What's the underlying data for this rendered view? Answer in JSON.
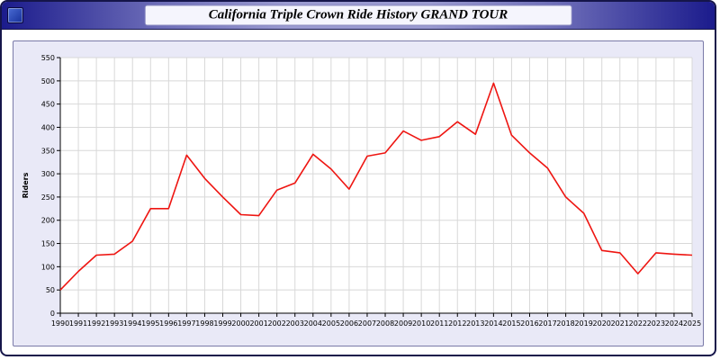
{
  "window": {
    "title": "California Triple Crown Ride History GRAND TOUR"
  },
  "colors": {
    "line": "#ee1511",
    "panel_bg": "#e9e9f7",
    "plot_bg": "#ffffff",
    "grid": "#d8d8d8",
    "axis": "#000000",
    "titlebar_edge": "#1b1b8c"
  },
  "chart_data": {
    "type": "line",
    "title": "California Triple Crown Ride History GRAND TOUR",
    "xlabel": "",
    "ylabel": "Riders",
    "ylim": [
      0,
      550
    ],
    "ytick_step": 50,
    "grid": true,
    "legend": "none",
    "x": [
      1990,
      1991,
      1992,
      1993,
      1994,
      1995,
      1996,
      1997,
      1998,
      1999,
      2000,
      2001,
      2002,
      2003,
      2004,
      2005,
      2006,
      2007,
      2008,
      2009,
      2010,
      2011,
      2012,
      2013,
      2014,
      2015,
      2016,
      2017,
      2018,
      2019,
      2020,
      2021,
      2022,
      2023,
      2024,
      2025
    ],
    "series": [
      {
        "name": "Riders",
        "color": "#ee1511",
        "values": [
          50,
          90,
          125,
          127,
          155,
          225,
          225,
          340,
          290,
          250,
          212,
          210,
          265,
          280,
          342,
          310,
          267,
          338,
          345,
          392,
          372,
          380,
          412,
          385,
          495,
          383,
          345,
          312,
          250,
          215,
          135,
          130,
          85,
          130,
          127,
          125
        ]
      }
    ]
  }
}
